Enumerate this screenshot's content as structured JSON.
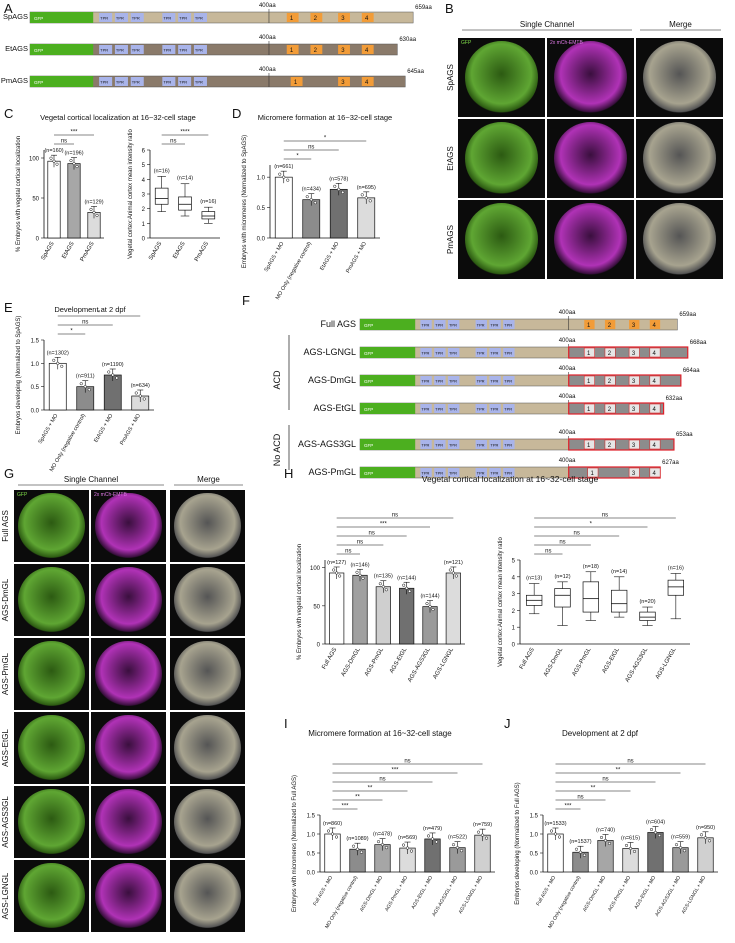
{
  "panels": {
    "A": "A",
    "B": "B",
    "C": "C",
    "D": "D",
    "E": "E",
    "F": "F",
    "G": "G",
    "H": "H",
    "I": "I",
    "J": "J"
  },
  "domains": {
    "gfp": "GFP",
    "tpr": "TPR",
    "mark_400": "400aa"
  },
  "panelA": [
    {
      "name": "SpAGS",
      "end": "659aa",
      "gl": [
        "1",
        "2",
        "3",
        "4"
      ]
    },
    {
      "name": "EtAGS",
      "end": "630aa",
      "gl": [
        "1",
        "2",
        "3",
        "4"
      ]
    },
    {
      "name": "PmAGS",
      "end": "645aa",
      "gl": [
        "1",
        "3",
        "4"
      ]
    }
  ],
  "panelB": {
    "header_single": "Single Channel",
    "header_merge": "Merge",
    "ch_gfp": "GFP",
    "ch_mch": "2x mCh-EMTB",
    "rows": [
      "SpAGS",
      "EtAGS",
      "PmAGS"
    ]
  },
  "panelC": {
    "title": "Vegetal cortical localization at 16~32-cell stage",
    "bar": {
      "ylabel": "% Embryos with vegetal cortical localization",
      "ticks": [
        "0",
        "50",
        "100"
      ],
      "categories": [
        "SpAGS",
        "EtAGS",
        "PmAGS"
      ],
      "values": [
        96,
        93,
        32
      ],
      "n": [
        "(n=160)",
        "(n=196)",
        "(n=129)"
      ],
      "sig": [
        "ns",
        "***"
      ]
    },
    "box": {
      "ylabel": "Vegetal cortex:Animal cortex mean intensity ratio",
      "ticks": [
        "0",
        "1",
        "2",
        "3",
        "4",
        "5",
        "6"
      ],
      "categories": [
        "SpAGS",
        "EtAGS",
        "PmAGS"
      ],
      "n": [
        "(n=16)",
        "(n=14)",
        "(n=16)"
      ],
      "sig": [
        "ns",
        "****"
      ],
      "stats": [
        [
          1.8,
          2.3,
          2.7,
          3.4,
          4.2
        ],
        [
          1.5,
          1.9,
          2.3,
          2.8,
          3.7
        ],
        [
          1.0,
          1.3,
          1.5,
          1.8,
          2.1
        ]
      ]
    }
  },
  "panelD": {
    "title": "Micromere formation at 16~32-cell stage",
    "ylabel": "Embryos with micromeres (Normalized to SpAGS)",
    "ticks": [
      "0.0",
      "0.5",
      "1.0"
    ],
    "categories": [
      "SpAGS + MO",
      "MO Only (negative control)",
      "EtAGS + MO",
      "PmAGS + MO"
    ],
    "values": [
      1.0,
      0.63,
      0.8,
      0.66
    ],
    "n": [
      "(n=661)",
      "(n=434)",
      "(n=578)",
      "(n=695)"
    ],
    "sig": [
      "*",
      "ns",
      "*"
    ]
  },
  "panelE": {
    "title": "Development at 2 dpf",
    "ylabel": "Embryos developing (Normalized to SpAGS)",
    "ticks": [
      "0.0",
      "0.5",
      "1.0",
      "1.5"
    ],
    "categories": [
      "SpAGS + MO",
      "MO Only (negative control)",
      "EtAGS + MO",
      "PmAGS + MO"
    ],
    "values": [
      1.0,
      0.5,
      0.75,
      0.3
    ],
    "n": [
      "(n=1302)",
      "(n=911)",
      "(n=1190)",
      "(n=634)"
    ],
    "sig": [
      "*",
      "ns",
      "*"
    ]
  },
  "panelF": {
    "rows": [
      {
        "name": "Full AGS",
        "end": "659aa",
        "gl": [
          "1",
          "2",
          "3",
          "4"
        ]
      },
      {
        "name": "AGS-LGNGL",
        "end": "668aa",
        "gl": [
          "1",
          "2",
          "3",
          "4"
        ]
      },
      {
        "name": "AGS-DmGL",
        "end": "664aa",
        "gl": [
          "1",
          "2",
          "3",
          "4"
        ]
      },
      {
        "name": "AGS-EtGL",
        "end": "632aa",
        "gl": [
          "1",
          "2",
          "3",
          "4"
        ]
      },
      {
        "name": "AGS-AGS3GL",
        "end": "653aa",
        "gl": [
          "1",
          "2",
          "3",
          "4"
        ]
      },
      {
        "name": "AGS-PmGL",
        "end": "627aa",
        "gl": [
          "1",
          "3",
          "4"
        ]
      }
    ],
    "acd": "ACD",
    "noacd": "No ACD"
  },
  "panelG": {
    "header_single": "Single Channel",
    "header_merge": "Merge",
    "ch_gfp": "GFP",
    "ch_mch": "2x mCh-EMTB",
    "rows": [
      "Full AGS",
      "AGS-DmGL",
      "AGS-PmGL",
      "AGS-EtGL",
      "AGS-AGS3GL",
      "AGS-LGNGL"
    ]
  },
  "panelH": {
    "title": "Vegetal cortical localization at 16~32-cell stage",
    "bar": {
      "ylabel": "% Embryos with vegetal cortical localization",
      "ticks": [
        "0",
        "50",
        "100"
      ],
      "categories": [
        "Full AGS",
        "AGS-DmGL",
        "AGS-PmGL",
        "AGS-EtGL",
        "AGS-AGS3GL",
        "AGS-LGNGL"
      ],
      "values": [
        93,
        90,
        75,
        73,
        49,
        93
      ],
      "n": [
        "(n=127)",
        "(n=146)",
        "(n=135)",
        "(n=144)",
        "(n=144)",
        "(n=121)"
      ],
      "sig": [
        "ns",
        "ns",
        "ns",
        "***",
        "ns"
      ]
    },
    "box": {
      "ylabel": "Vegetal cortex:Animal cortex mean intensity ratio",
      "ticks": [
        "0",
        "1",
        "2",
        "3",
        "4",
        "5"
      ],
      "categories": [
        "Full AGS",
        "AGS-DmGL",
        "AGS-PmGL",
        "AGS-EtGL",
        "AGS-AGS3GL",
        "AGS-LGNGL"
      ],
      "n": [
        "(n=13)",
        "(n=12)",
        "(n=18)",
        "(n=14)",
        "(n=20)",
        "(n=16)"
      ],
      "sig": [
        "ns",
        "ns",
        "ns",
        "*",
        "ns"
      ],
      "stats": [
        [
          1.8,
          2.3,
          2.6,
          2.9,
          3.6
        ],
        [
          1.1,
          2.2,
          2.9,
          3.3,
          3.7
        ],
        [
          1.4,
          1.9,
          2.7,
          3.7,
          4.3
        ],
        [
          1.6,
          1.9,
          2.4,
          3.2,
          4.0
        ],
        [
          1.1,
          1.4,
          1.6,
          1.9,
          2.2
        ],
        [
          1.5,
          2.9,
          3.4,
          3.8,
          4.2
        ]
      ]
    }
  },
  "panelI": {
    "title": "Micromere formation at 16~32-cell stage",
    "ylabel": "Embryos with micromeres (Normalized to Full AGS)",
    "ticks": [
      "0.0",
      "0.5",
      "1.0",
      "1.5"
    ],
    "categories": [
      "Full AGS + MO",
      "MO Only (negative control)",
      "AGS-DmGL + MO",
      "AGS-PmGL + MO",
      "AGS-EtGL + MO",
      "AGS-AGS3GL + MO",
      "AGS-LGNGL + MO"
    ],
    "values": [
      1.0,
      0.6,
      0.72,
      0.63,
      0.87,
      0.64,
      0.97
    ],
    "n": [
      "(n=860)",
      "(n=1089)",
      "(n=478)",
      "(n=569)",
      "(n=479)",
      "(n=522)",
      "(n=759)"
    ],
    "sig": [
      "***",
      "**",
      "**",
      "ns",
      "***",
      "ns"
    ]
  },
  "panelJ": {
    "title": "Development at 2 dpf",
    "ylabel": "Embryos developing (Normalized to Full AGS)",
    "ticks": [
      "0.0",
      "0.5",
      "1.0",
      "1.5"
    ],
    "categories": [
      "Full AGS + MO",
      "MO Only (negative control)",
      "AGS-DmGL + MO",
      "AGS-PmGL + MO",
      "AGS-EtGL + MO",
      "AGS-AGS3GL + MO",
      "AGS-LGNGL + MO"
    ],
    "values": [
      1.0,
      0.52,
      0.83,
      0.62,
      1.04,
      0.64,
      0.9
    ],
    "n": [
      "(n=1533)",
      "(n=1537)",
      "(n=740)",
      "(n=615)",
      "(n=604)",
      "(n=559)",
      "(n=950)"
    ],
    "sig": [
      "***",
      "ns",
      "**",
      "ns",
      "**",
      "ns"
    ]
  }
}
